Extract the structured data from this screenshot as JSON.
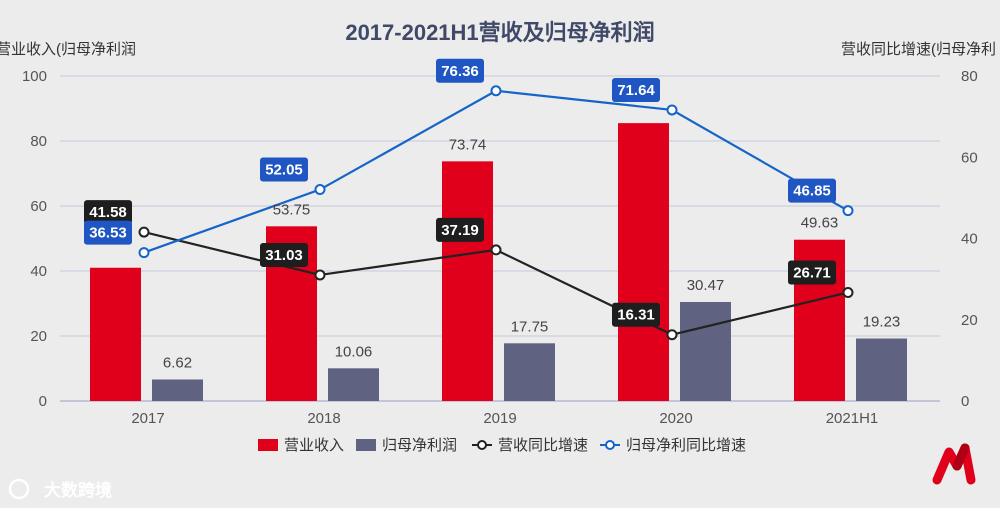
{
  "chart_data": {
    "type": "bar+line",
    "title": "2017-2021H1营收及归母净利润",
    "left_axis_label": "营业收入(归母净利润",
    "right_axis_label": "营收同比增速(归母净利",
    "categories": [
      "2017",
      "2018",
      "2019",
      "2020",
      "2021H1"
    ],
    "y_left_ticks": [
      "0",
      "20",
      "40",
      "60",
      "80",
      "100"
    ],
    "y_right_ticks": [
      "0",
      "20",
      "40",
      "60",
      "80"
    ],
    "ylim_left": [
      0,
      100
    ],
    "ylim_right": [
      0,
      80
    ],
    "series": [
      {
        "name": "营业收入",
        "kind": "bar",
        "axis": "left",
        "color": "#e0001b",
        "values": [
          41,
          53.75,
          73.74,
          85.5,
          49.63
        ],
        "labels": [
          "",
          "53.75",
          "73.74",
          "",
          "49.63"
        ]
      },
      {
        "name": "归母净利润",
        "kind": "bar",
        "axis": "left",
        "color": "#5f6280",
        "values": [
          6.62,
          10.06,
          17.75,
          30.47,
          19.23
        ],
        "labels": [
          "6.62",
          "10.06",
          "17.75",
          "30.47",
          "19.23"
        ]
      },
      {
        "name": "营收同比增速",
        "kind": "line",
        "axis": "right",
        "color": "#222222",
        "values": [
          41.58,
          31.03,
          37.19,
          16.31,
          26.71
        ],
        "labels": [
          "41.58",
          "31.03",
          "37.19",
          "16.31",
          "26.71"
        ]
      },
      {
        "name": "归母净利同比增速",
        "kind": "line",
        "axis": "right",
        "color": "#1565c8",
        "values": [
          36.53,
          52.05,
          76.36,
          71.64,
          46.85
        ],
        "labels": [
          "36.53",
          "52.05",
          "76.36",
          "71.64",
          "46.85"
        ]
      }
    ],
    "legend_position": "bottom"
  },
  "watermark": {
    "text": "大数跨境"
  }
}
